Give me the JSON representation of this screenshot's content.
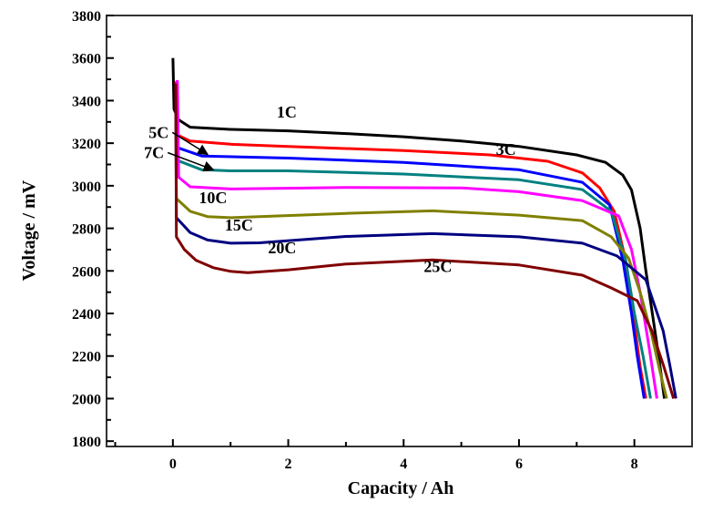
{
  "chart_data": {
    "type": "line",
    "title": "",
    "xlabel": "Capacity / Ah",
    "ylabel": "Voltage / mV",
    "xlim": [
      -1.15,
      9.0
    ],
    "ylim": [
      1775,
      3800
    ],
    "xticks": [
      0,
      2,
      4,
      6,
      8
    ],
    "yticks": [
      1800,
      2000,
      2200,
      2400,
      2600,
      2800,
      3000,
      3200,
      3400,
      3600,
      3800
    ],
    "grid": false,
    "legend": "none",
    "series": [
      {
        "name": "1C",
        "color": "#000000",
        "label_at": [
          1.8,
          3320
        ],
        "points": [
          [
            0,
            3600
          ],
          [
            0.02,
            3360
          ],
          [
            0.1,
            3310
          ],
          [
            0.3,
            3275
          ],
          [
            1,
            3265
          ],
          [
            2,
            3258
          ],
          [
            3,
            3245
          ],
          [
            4,
            3230
          ],
          [
            5,
            3210
          ],
          [
            6,
            3185
          ],
          [
            7,
            3145
          ],
          [
            7.5,
            3110
          ],
          [
            7.8,
            3050
          ],
          [
            7.95,
            2980
          ],
          [
            8.1,
            2800
          ],
          [
            8.2,
            2600
          ],
          [
            8.3,
            2420
          ],
          [
            8.42,
            2200
          ],
          [
            8.52,
            2000
          ]
        ]
      },
      {
        "name": "3C",
        "color": "#ff0000",
        "label_at": [
          5.6,
          3145
        ],
        "points": [
          [
            0.05,
            3490
          ],
          [
            0.07,
            3240
          ],
          [
            0.3,
            3210
          ],
          [
            1,
            3195
          ],
          [
            2,
            3185
          ],
          [
            4,
            3165
          ],
          [
            5.5,
            3145
          ],
          [
            6.5,
            3115
          ],
          [
            7.1,
            3060
          ],
          [
            7.4,
            2990
          ],
          [
            7.65,
            2880
          ],
          [
            7.85,
            2650
          ],
          [
            8.0,
            2350
          ],
          [
            8.1,
            2150
          ],
          [
            8.2,
            2000
          ]
        ]
      },
      {
        "name": "5C",
        "color": "#0000ff",
        "label_at": [
          -0.42,
          3225
        ],
        "arrow_to": [
          0.6,
          3148
        ],
        "points": [
          [
            0.05,
            3480
          ],
          [
            0.07,
            3180
          ],
          [
            0.5,
            3140
          ],
          [
            2,
            3130
          ],
          [
            4,
            3110
          ],
          [
            6,
            3075
          ],
          [
            7.1,
            3016
          ],
          [
            7.57,
            2910
          ],
          [
            7.8,
            2650
          ],
          [
            7.95,
            2400
          ],
          [
            8.05,
            2200
          ],
          [
            8.17,
            2000
          ]
        ]
      },
      {
        "name": "7C",
        "color": "#008080",
        "label_at": [
          -0.5,
          3130
        ],
        "arrow_to": [
          0.7,
          3075
        ],
        "points": [
          [
            0.05,
            3470
          ],
          [
            0.07,
            3120
          ],
          [
            0.5,
            3075
          ],
          [
            1,
            3070
          ],
          [
            2,
            3070
          ],
          [
            4,
            3055
          ],
          [
            6,
            3028
          ],
          [
            7.1,
            2982
          ],
          [
            7.6,
            2880
          ],
          [
            7.85,
            2650
          ],
          [
            8.0,
            2400
          ],
          [
            8.15,
            2200
          ],
          [
            8.28,
            2000
          ]
        ]
      },
      {
        "name": "10C",
        "color": "#ff00ff",
        "label_at": [
          0.45,
          2918
        ],
        "points": [
          [
            0.05,
            3490
          ],
          [
            0.08,
            3490
          ],
          [
            0.1,
            3040
          ],
          [
            0.3,
            2995
          ],
          [
            1,
            2985
          ],
          [
            3,
            2992
          ],
          [
            5,
            2990
          ],
          [
            6,
            2972
          ],
          [
            7.1,
            2930
          ],
          [
            7.73,
            2858
          ],
          [
            7.95,
            2700
          ],
          [
            8.1,
            2500
          ],
          [
            8.25,
            2250
          ],
          [
            8.39,
            2000
          ]
        ]
      },
      {
        "name": "15C",
        "color": "#808000",
        "label_at": [
          0.9,
          2790
        ],
        "points": [
          [
            0.05,
            3470
          ],
          [
            0.06,
            2940
          ],
          [
            0.3,
            2880
          ],
          [
            0.6,
            2855
          ],
          [
            1,
            2850
          ],
          [
            3,
            2870
          ],
          [
            4.5,
            2882
          ],
          [
            6,
            2862
          ],
          [
            7.1,
            2836
          ],
          [
            7.6,
            2760
          ],
          [
            7.9,
            2660
          ],
          [
            8.1,
            2500
          ],
          [
            8.3,
            2300
          ],
          [
            8.45,
            2120
          ],
          [
            8.56,
            2000
          ]
        ]
      },
      {
        "name": "20C",
        "color": "#000080",
        "label_at": [
          1.65,
          2682
        ],
        "points": [
          [
            0.05,
            3460
          ],
          [
            0.06,
            2850
          ],
          [
            0.3,
            2780
          ],
          [
            0.6,
            2745
          ],
          [
            1,
            2730
          ],
          [
            1.5,
            2732
          ],
          [
            3,
            2762
          ],
          [
            4.5,
            2775
          ],
          [
            6,
            2760
          ],
          [
            7.1,
            2730
          ],
          [
            7.7,
            2670
          ],
          [
            8.2,
            2558
          ],
          [
            8.5,
            2318
          ],
          [
            8.62,
            2150
          ],
          [
            8.72,
            2000
          ]
        ]
      },
      {
        "name": "25C",
        "color": "#800000",
        "label_at": [
          4.35,
          2595
        ],
        "points": [
          [
            0.05,
            3480
          ],
          [
            0.06,
            2760
          ],
          [
            0.2,
            2700
          ],
          [
            0.4,
            2650
          ],
          [
            0.7,
            2615
          ],
          [
            1,
            2598
          ],
          [
            1.3,
            2592
          ],
          [
            2,
            2605
          ],
          [
            3,
            2632
          ],
          [
            4.5,
            2652
          ],
          [
            6,
            2628
          ],
          [
            7.1,
            2580
          ],
          [
            7.6,
            2520
          ],
          [
            8.05,
            2460
          ],
          [
            8.3,
            2320
          ],
          [
            8.5,
            2160
          ],
          [
            8.68,
            2000
          ]
        ]
      }
    ]
  }
}
